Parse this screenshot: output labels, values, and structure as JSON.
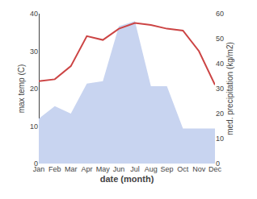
{
  "chart_data": {
    "type": "line",
    "xlabel": "date (month)",
    "ylabel": "max temp (C)",
    "y2label": "med. precipitation (kg/m2)",
    "categories": [
      "Jan",
      "Feb",
      "Mar",
      "Apr",
      "May",
      "Jun",
      "Jul",
      "Aug",
      "Sep",
      "Oct",
      "Nov",
      "Dec"
    ],
    "series": [
      {
        "type": "line",
        "color": "#cc4444",
        "values": [
          22,
          22.5,
          26,
          34,
          33,
          36,
          37.5,
          37,
          36,
          35.5,
          30,
          21
        ]
      },
      {
        "type": "area",
        "color": "#c8d4f0",
        "axis": "y2",
        "values": [
          18,
          23,
          20,
          32,
          33,
          55,
          57,
          31,
          31,
          14,
          14,
          14
        ]
      }
    ],
    "ylim": [
      0,
      40
    ],
    "yticks": [
      0,
      10,
      20,
      30,
      40
    ],
    "y2lim": [
      0,
      60
    ],
    "y2ticks": [
      0,
      10,
      20,
      30,
      40,
      50,
      60
    ],
    "grid": false
  }
}
